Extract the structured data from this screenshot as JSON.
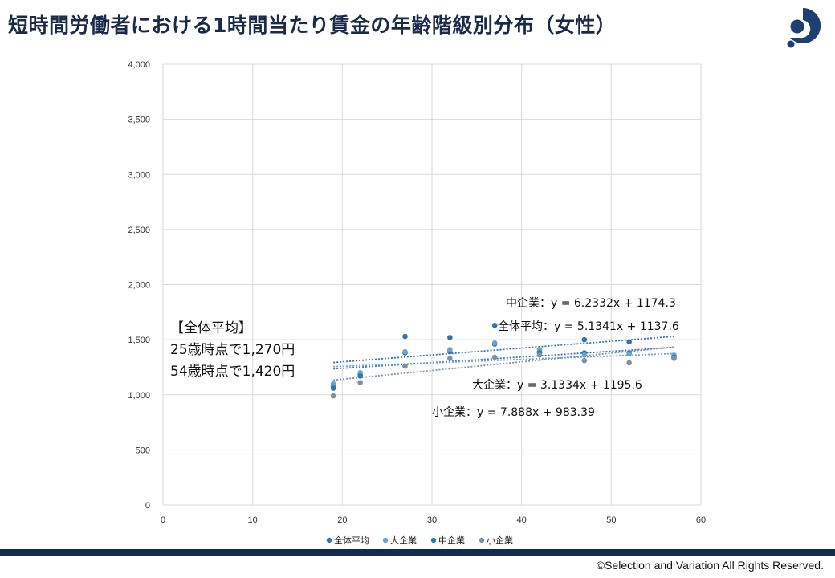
{
  "page": {
    "title": "短時間労働者における1時間当たり賃金の年齢階級別分布（女性）",
    "copyright": "©Selection and Variation All Rights Reserved."
  },
  "callout": {
    "line1": "【全体平均】",
    "line2": "25歳時点で1,270円",
    "line3": "54歳時点で1,420円"
  },
  "colors": {
    "title": "#1b2a4a",
    "logo": "#1f3f73",
    "footer_bar": "#142a55",
    "grid": "#d9d9d9"
  },
  "icons": {
    "logo": "company-logo-icon"
  },
  "chart_data": {
    "type": "scatter",
    "xlim": [
      0,
      60
    ],
    "ylim": [
      0,
      4000
    ],
    "xticks": [
      0,
      10,
      20,
      30,
      40,
      50,
      60
    ],
    "yticks": [
      0,
      500,
      1000,
      1500,
      2000,
      2500,
      3000,
      3500,
      4000
    ],
    "ytick_labels": [
      "0",
      "500",
      "1,000",
      "1,500",
      "2,000",
      "2,500",
      "3,000",
      "3,500",
      "4,000"
    ],
    "grid": true,
    "legend_position": "bottom",
    "x": [
      19,
      22,
      27,
      32,
      37,
      42,
      47,
      52,
      57
    ],
    "series": [
      {
        "name": "全体平均",
        "color": "#3b74ac",
        "values": [
          1070,
          1180,
          1380,
          1390,
          1460,
          1390,
          1380,
          1380,
          1350
        ]
      },
      {
        "name": "大企業",
        "color": "#6ba3cf",
        "values": [
          1100,
          1200,
          1390,
          1410,
          1470,
          1410,
          1360,
          1370,
          1360
        ]
      },
      {
        "name": "中企業",
        "color": "#2e75b6",
        "values": [
          1060,
          1170,
          1530,
          1520,
          1630,
          1380,
          1500,
          1480,
          1340
        ]
      },
      {
        "name": "小企業",
        "color": "#7f8fa6",
        "values": [
          990,
          1110,
          1260,
          1330,
          1340,
          1360,
          1310,
          1290,
          1330
        ]
      }
    ],
    "trendlines": [
      {
        "series": "全体平均",
        "slope": 5.1341,
        "intercept": 1137.6,
        "label": "全体平均：y = 5.1341x + 1137.6"
      },
      {
        "series": "大企業",
        "slope": 3.1334,
        "intercept": 1195.6,
        "label": "大企業：y = 3.1334x + 1195.6"
      },
      {
        "series": "中企業",
        "slope": 6.2332,
        "intercept": 1174.3,
        "label": "中企業：y = 6.2332x + 1174.3"
      },
      {
        "series": "小企業",
        "slope": 7.888,
        "intercept": 983.39,
        "label": "小企業：y = 7.888x + 983.39"
      }
    ],
    "trend_x_range": [
      19,
      57
    ]
  }
}
